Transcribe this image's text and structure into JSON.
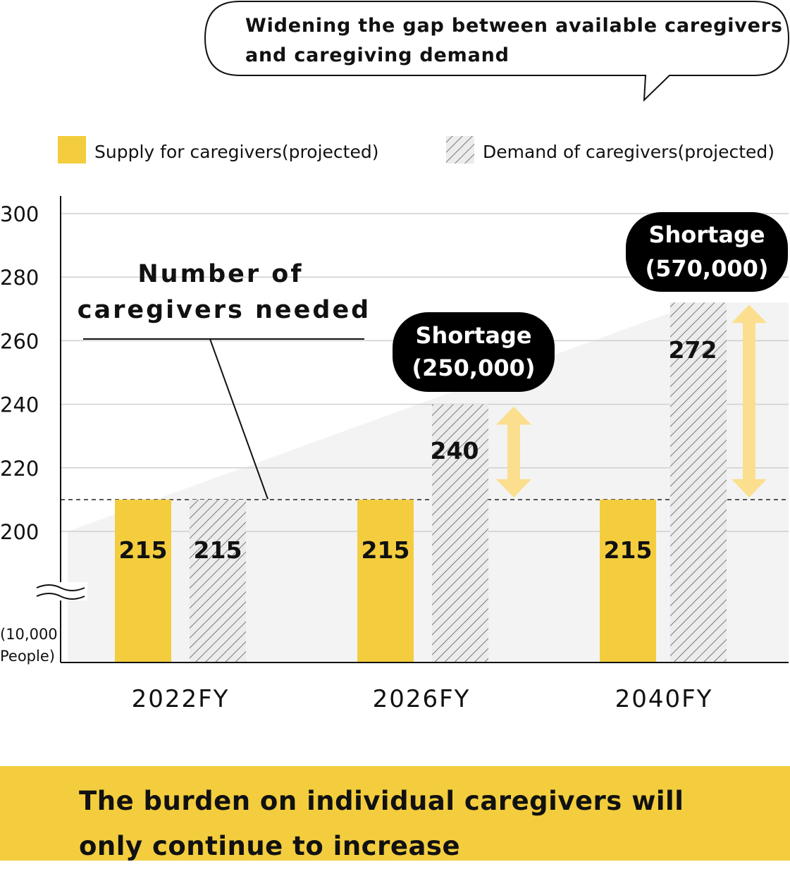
{
  "callout": "Widening the gap between available caregivers and caregiving demand",
  "legend": {
    "supply": "Supply for caregivers(projected)",
    "demand": "Demand of caregivers(projected)"
  },
  "annotation": {
    "needed_line1": "Number of",
    "needed_line2": "caregivers needed"
  },
  "shortages": [
    {
      "line1": "Shortage",
      "line2": "(250,000)"
    },
    {
      "line1": "Shortage",
      "line2": "(570,000)"
    }
  ],
  "unit_line1": "(10,000",
  "unit_line2": "People)",
  "footer": "The burden on individual caregivers will only continue to increase",
  "colors": {
    "supply": "#f3cd3e",
    "demand_hatch": "#7a7a7a",
    "arrow": "#fbdf8e",
    "banner": "#f3cd3e",
    "badge": "#000000"
  },
  "chart_data": {
    "type": "bar",
    "categories": [
      "2022FY",
      "2026FY",
      "2040FY"
    ],
    "series": [
      {
        "name": "Supply for caregivers(projected)",
        "values": [
          215,
          215,
          215
        ]
      },
      {
        "name": "Demand of caregivers(projected)",
        "values": [
          215,
          240,
          272
        ]
      }
    ],
    "value_labels": {
      "supply": [
        "215",
        "215",
        "215"
      ],
      "demand": [
        "215",
        "240",
        "272"
      ]
    },
    "y_ticks": [
      "300",
      "280",
      "260",
      "240",
      "220",
      "200"
    ],
    "ylim": [
      200,
      300
    ],
    "y_axis_break": true,
    "reference_line": 210,
    "legend_position": "top",
    "grid": true
  }
}
